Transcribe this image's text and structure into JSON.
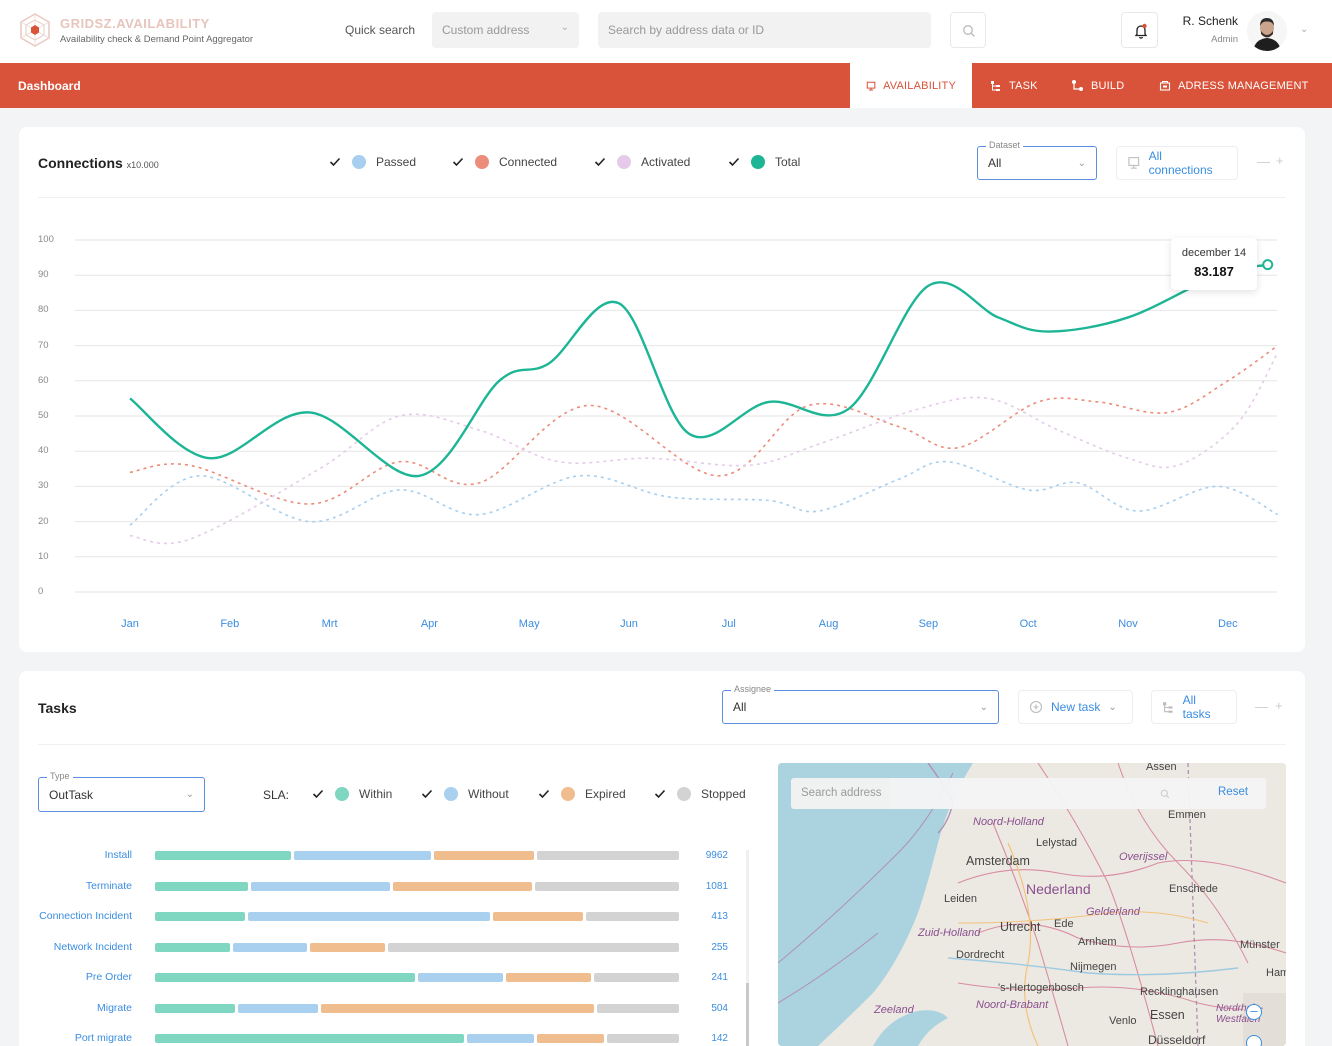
{
  "header": {
    "app_name": "GRIDSZ.AVAILABILITY",
    "app_subtitle": "Availability check & Demand Point Aggregator",
    "quick_search_label": "Quick search",
    "address_type": "Custom address",
    "search_placeholder": "Search by address data or ID",
    "user_name": "R. Schenk",
    "user_role": "Admin"
  },
  "nav": {
    "title": "Dashboard",
    "tabs": [
      {
        "label": "AVAILABILITY",
        "icon": "monitor-icon",
        "active": true
      },
      {
        "label": "TASK",
        "icon": "task-tree-icon",
        "active": false
      },
      {
        "label": "BUILD",
        "icon": "build-flow-icon",
        "active": false
      },
      {
        "label": "ADRESS MANAGEMENT",
        "icon": "address-icon",
        "active": false
      }
    ]
  },
  "connections": {
    "title": "Connections",
    "unit": "x10.000",
    "legend": [
      {
        "label": "Passed",
        "color": "#a8cff0"
      },
      {
        "label": "Connected",
        "color": "#ec8c7a"
      },
      {
        "label": "Activated",
        "color": "#e5cbe9"
      },
      {
        "label": "Total",
        "color": "#1cb595"
      }
    ],
    "dataset_label": "Dataset",
    "dataset_value": "All",
    "all_connections_label": "All connections",
    "tooltip_date": "december 14",
    "tooltip_value": "83.187"
  },
  "chart_data": {
    "type": "line",
    "x": [
      "Jan",
      "Feb",
      "Mrt",
      "Apr",
      "May",
      "Jun",
      "Jul",
      "Aug",
      "Sep",
      "Oct",
      "Nov",
      "Dec"
    ],
    "y_ticks": [
      0,
      10,
      20,
      30,
      40,
      50,
      60,
      70,
      80,
      90,
      100
    ],
    "ylim": [
      0,
      100
    ],
    "series": [
      {
        "name": "Total",
        "color": "#1cb595",
        "style": "solid",
        "points": [
          [
            0.5,
            55
          ],
          [
            1.3,
            38
          ],
          [
            2.3,
            51
          ],
          [
            3.4,
            33
          ],
          [
            4.2,
            60
          ],
          [
            4.7,
            65
          ],
          [
            5.4,
            82
          ],
          [
            6.1,
            45
          ],
          [
            6.9,
            54
          ],
          [
            7.7,
            52
          ],
          [
            8.5,
            87
          ],
          [
            9.2,
            78
          ],
          [
            9.7,
            74
          ],
          [
            10.5,
            78
          ],
          [
            11.4,
            90
          ],
          [
            11.9,
            93
          ]
        ]
      },
      {
        "name": "Connected",
        "color": "#ec8c7a",
        "style": "dashed",
        "points": [
          [
            0.5,
            34
          ],
          [
            1.1,
            36
          ],
          [
            2.3,
            25
          ],
          [
            3.2,
            37
          ],
          [
            4.0,
            31
          ],
          [
            5.1,
            53
          ],
          [
            6.4,
            33
          ],
          [
            7.3,
            53
          ],
          [
            8.2,
            47
          ],
          [
            8.8,
            41
          ],
          [
            9.6,
            54
          ],
          [
            10.2,
            54
          ],
          [
            10.9,
            51
          ],
          [
            11.5,
            60
          ],
          [
            12.0,
            70
          ]
        ]
      },
      {
        "name": "Passed",
        "color": "#a8cff0",
        "style": "dashed",
        "points": [
          [
            0.5,
            19
          ],
          [
            1.2,
            33
          ],
          [
            2.3,
            20
          ],
          [
            3.2,
            29
          ],
          [
            4.0,
            22
          ],
          [
            5.0,
            33
          ],
          [
            5.9,
            27
          ],
          [
            6.9,
            26
          ],
          [
            7.4,
            23
          ],
          [
            8.2,
            32
          ],
          [
            8.7,
            37
          ],
          [
            9.5,
            29
          ],
          [
            10.0,
            31
          ],
          [
            10.6,
            23
          ],
          [
            11.4,
            30
          ],
          [
            12.0,
            22
          ]
        ]
      },
      {
        "name": "Activated",
        "color": "#e5cbe9",
        "style": "dashed",
        "points": [
          [
            0.5,
            16
          ],
          [
            1.1,
            15
          ],
          [
            2.4,
            35
          ],
          [
            3.2,
            50
          ],
          [
            4.0,
            46
          ],
          [
            4.8,
            37
          ],
          [
            5.7,
            38
          ],
          [
            6.7,
            36
          ],
          [
            7.4,
            42
          ],
          [
            8.4,
            52
          ],
          [
            9.1,
            55
          ],
          [
            9.8,
            46
          ],
          [
            10.5,
            38
          ],
          [
            11.0,
            36
          ],
          [
            11.6,
            48
          ],
          [
            12.0,
            68
          ]
        ]
      }
    ]
  },
  "tasks": {
    "title": "Tasks",
    "assignee_label": "Assignee",
    "assignee_value": "All",
    "new_task_label": "New task",
    "all_tasks_label": "All tasks",
    "type_label": "Type",
    "type_value": "OutTask",
    "sla_label": "SLA:",
    "sla_legend": [
      {
        "label": "Within",
        "color": "#7fd6c1"
      },
      {
        "label": "Without",
        "color": "#aad0ef"
      },
      {
        "label": "Expired",
        "color": "#f0bd8f"
      },
      {
        "label": "Stopped",
        "color": "#d3d3d3"
      }
    ],
    "rows": [
      {
        "label": "Install",
        "count": "9962",
        "within": 0.265,
        "without": 0.265,
        "expired": 0.195,
        "stopped": 0.275
      },
      {
        "label": "Terminate",
        "count": "1081",
        "within": 0.18,
        "without": 0.27,
        "expired": 0.27,
        "stopped": 0.28
      },
      {
        "label": "Connection Incident",
        "count": "413",
        "within": 0.175,
        "without": 0.47,
        "expired": 0.175,
        "stopped": 0.18
      },
      {
        "label": "Network Incident",
        "count": "255",
        "within": 0.145,
        "without": 0.145,
        "expired": 0.145,
        "stopped": 0.565
      },
      {
        "label": "Pre Order",
        "count": "241",
        "within": 0.505,
        "without": 0.165,
        "expired": 0.165,
        "stopped": 0.165
      },
      {
        "label": "Migrate",
        "count": "504",
        "within": 0.155,
        "without": 0.155,
        "expired": 0.53,
        "stopped": 0.16
      },
      {
        "label": "Port migrate",
        "count": "142",
        "within": 0.6,
        "without": 0.13,
        "expired": 0.13,
        "stopped": 0.14
      }
    ]
  },
  "map": {
    "search_placeholder": "Search address",
    "reset_label": "Reset",
    "places": [
      "Assen",
      "Emmen",
      "Noord-Holland",
      "Lelystad",
      "Amsterdam",
      "Overijssel",
      "Nederland",
      "Enschede",
      "Leiden",
      "Gelderland",
      "Zuid-Holland",
      "Utrecht",
      "Ede",
      "Arnhem",
      "Münster",
      "Dordrecht",
      "Nijmegen",
      "Ham",
      "'s-Hertogenbosch",
      "Recklinghausen",
      "Zeeland",
      "Noord-Brabant",
      "Venlo",
      "Essen",
      "Nordrhein-Westfalen",
      "Düsseldorf"
    ]
  }
}
